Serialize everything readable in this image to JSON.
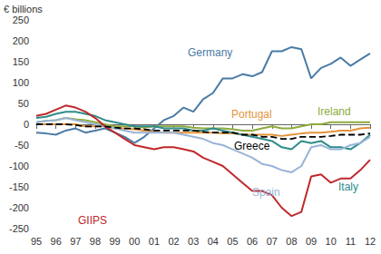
{
  "chart_data": {
    "type": "line",
    "ylabel": "€ billions",
    "categories": [
      "95",
      null,
      "96",
      null,
      "97",
      null,
      "98",
      null,
      "99",
      null,
      "00",
      null,
      "01",
      null,
      "02",
      null,
      "03",
      null,
      "04",
      null,
      "05",
      null,
      "06",
      null,
      "07",
      null,
      "08",
      null,
      "09",
      null,
      "10",
      null,
      "11",
      null,
      "12"
    ],
    "series": [
      {
        "name": "Germany",
        "color": "#4a7ba6",
        "line_style": "solid",
        "values": [
          -20,
          -22,
          -25,
          -15,
          -10,
          -20,
          -15,
          -10,
          -20,
          -30,
          -45,
          -30,
          -10,
          10,
          20,
          40,
          30,
          60,
          75,
          110,
          110,
          120,
          115,
          125,
          175,
          175,
          185,
          180,
          110,
          135,
          145,
          160,
          140,
          155,
          170
        ]
      },
      {
        "name": "Ireland",
        "color": "#8faa3c",
        "line_style": "solid",
        "values": [
          5,
          8,
          10,
          15,
          12,
          10,
          5,
          0,
          -5,
          -5,
          -5,
          -8,
          -5,
          -5,
          -5,
          -5,
          -8,
          -10,
          -10,
          -10,
          -12,
          -15,
          -15,
          -10,
          -5,
          -10,
          -10,
          -5,
          0,
          0,
          5,
          5,
          5,
          5,
          5
        ]
      },
      {
        "name": "Portugal",
        "color": "#e2943b",
        "line_style": "solid",
        "values": [
          0,
          0,
          0,
          0,
          0,
          -5,
          -5,
          -5,
          -10,
          -10,
          -12,
          -15,
          -18,
          -20,
          -20,
          -20,
          -20,
          -20,
          -20,
          -22,
          -22,
          -25,
          -25,
          -25,
          -25,
          -28,
          -25,
          -22,
          -20,
          -20,
          -18,
          -15,
          -15,
          -10,
          -8
        ]
      },
      {
        "name": "Greece",
        "color": "#000000",
        "line_style": "dashed",
        "values": [
          0,
          0,
          0,
          0,
          -2,
          -5,
          -5,
          -5,
          -8,
          -10,
          -10,
          -12,
          -15,
          -15,
          -15,
          -15,
          -15,
          -18,
          -20,
          -20,
          -20,
          -25,
          -25,
          -30,
          -30,
          -35,
          -35,
          -30,
          -30,
          -30,
          -28,
          -25,
          -25,
          -25,
          -22
        ]
      },
      {
        "name": "Italy",
        "color": "#2e8c8c",
        "line_style": "solid",
        "values": [
          15,
          18,
          25,
          30,
          30,
          25,
          20,
          10,
          5,
          0,
          -5,
          -5,
          -5,
          -10,
          -10,
          -10,
          -15,
          -15,
          -10,
          -15,
          -20,
          -25,
          -30,
          -35,
          -40,
          -55,
          -60,
          -40,
          -45,
          -40,
          -55,
          -55,
          -60,
          -45,
          -25
        ]
      },
      {
        "name": "Spain",
        "color": "#97b4d6",
        "line_style": "solid",
        "values": [
          5,
          8,
          10,
          15,
          10,
          5,
          0,
          -5,
          -10,
          -15,
          -20,
          -20,
          -20,
          -20,
          -20,
          -25,
          -30,
          -35,
          -45,
          -50,
          -60,
          -70,
          -80,
          -95,
          -100,
          -110,
          -115,
          -100,
          -55,
          -50,
          -60,
          -60,
          -50,
          -45,
          -30
        ]
      },
      {
        "name": "GIIPS",
        "color": "#c0282b",
        "line_style": "solid",
        "values": [
          20,
          25,
          35,
          45,
          40,
          30,
          15,
          -5,
          -20,
          -35,
          -50,
          -55,
          -60,
          -55,
          -55,
          -60,
          -65,
          -80,
          -90,
          -100,
          -120,
          -140,
          -160,
          -160,
          -170,
          -200,
          -220,
          -210,
          -125,
          -120,
          -140,
          -130,
          -130,
          -110,
          -85
        ]
      }
    ],
    "ylim": [
      -250,
      250
    ],
    "yticks": [
      -250,
      -200,
      -150,
      -100,
      -50,
      0,
      50,
      100,
      150,
      200,
      250
    ],
    "grid": false
  }
}
